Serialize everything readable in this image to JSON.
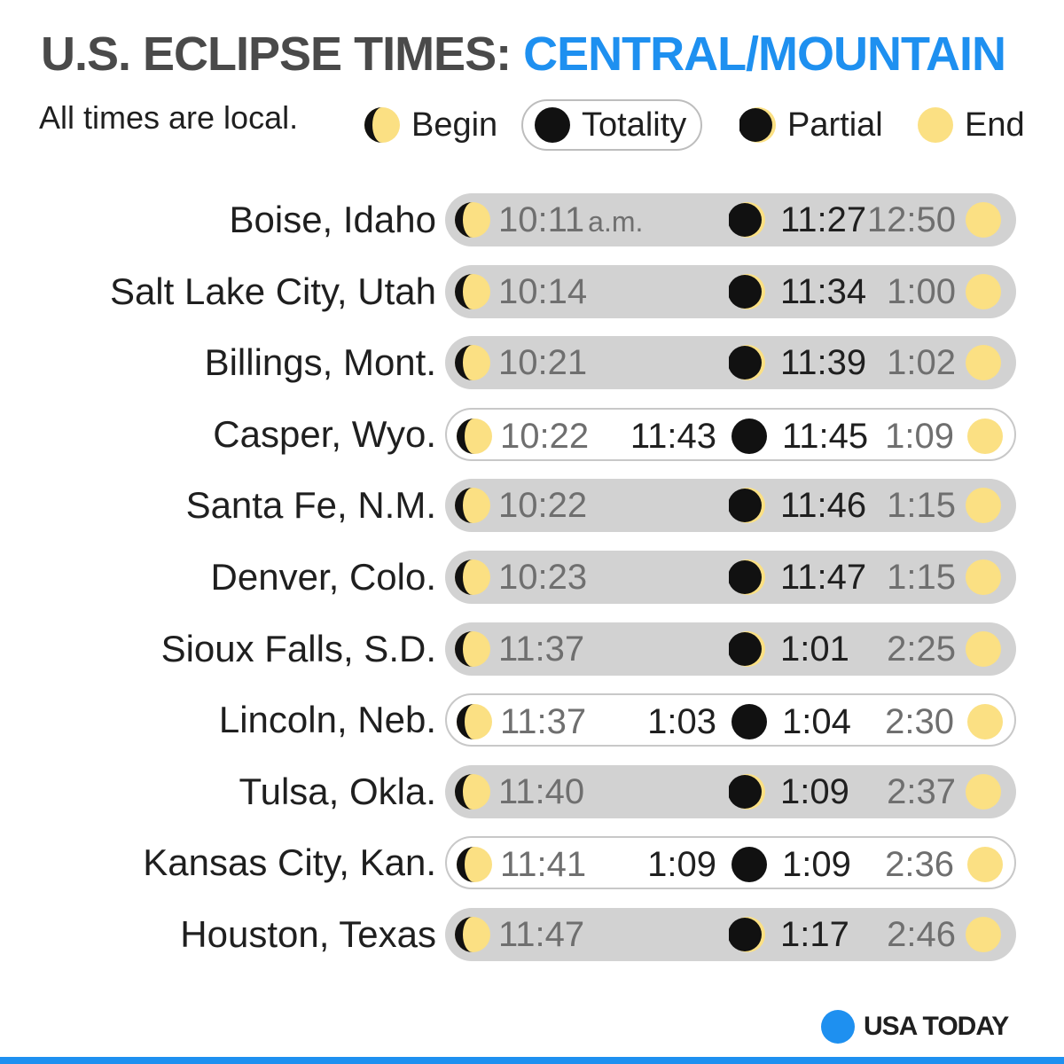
{
  "title": {
    "prefix": "U.S. ECLIPSE TIMES:",
    "highlight": "CENTRAL/MOUNTAIN"
  },
  "note": "All times are local.",
  "legend": [
    {
      "key": "begin",
      "label": "Begin",
      "icon": "eclipse-begin-icon"
    },
    {
      "key": "totality",
      "label": "Totality",
      "icon": "eclipse-totality-icon"
    },
    {
      "key": "partial",
      "label": "Partial",
      "icon": "eclipse-partial-icon"
    },
    {
      "key": "end",
      "label": "End",
      "icon": "sun-end-icon"
    }
  ],
  "colors": {
    "title_dark": "#4a4a4a",
    "title_blue": "#1e90f0",
    "sun": "#fbe083",
    "moon": "#111111",
    "bar_partial": "#d2d2d2"
  },
  "rows": [
    {
      "city": "Boise, Idaho",
      "type": "partial",
      "begin": "10:11",
      "begin_suffix": "a.m.",
      "totality_start": "",
      "max": "11:27",
      "end": "12:50"
    },
    {
      "city": "Salt Lake City, Utah",
      "type": "partial",
      "begin": "10:14",
      "begin_suffix": "",
      "totality_start": "",
      "max": "11:34",
      "end": "1:00"
    },
    {
      "city": "Billings, Mont.",
      "type": "partial",
      "begin": "10:21",
      "begin_suffix": "",
      "totality_start": "",
      "max": "11:39",
      "end": "1:02"
    },
    {
      "city": "Casper, Wyo.",
      "type": "totality",
      "begin": "10:22",
      "begin_suffix": "",
      "totality_start": "11:43",
      "max": "11:45",
      "end": "1:09"
    },
    {
      "city": "Santa Fe, N.M.",
      "type": "partial",
      "begin": "10:22",
      "begin_suffix": "",
      "totality_start": "",
      "max": "11:46",
      "end": "1:15"
    },
    {
      "city": "Denver, Colo.",
      "type": "partial",
      "begin": "10:23",
      "begin_suffix": "",
      "totality_start": "",
      "max": "11:47",
      "end": "1:15"
    },
    {
      "city": "Sioux Falls, S.D.",
      "type": "partial",
      "begin": "11:37",
      "begin_suffix": "",
      "totality_start": "",
      "max": "1:01",
      "end": "2:25"
    },
    {
      "city": "Lincoln, Neb.",
      "type": "totality",
      "begin": "11:37",
      "begin_suffix": "",
      "totality_start": "1:03",
      "max": "1:04",
      "end": "2:30"
    },
    {
      "city": "Tulsa, Okla.",
      "type": "partial",
      "begin": "11:40",
      "begin_suffix": "",
      "totality_start": "",
      "max": "1:09",
      "end": "2:37"
    },
    {
      "city": "Kansas City, Kan.",
      "type": "totality",
      "begin": "11:41",
      "begin_suffix": "",
      "totality_start": "1:09",
      "max": "1:09",
      "end": "2:36"
    },
    {
      "city": "Houston, Texas",
      "type": "partial",
      "begin": "11:47",
      "begin_suffix": "",
      "totality_start": "",
      "max": "1:17",
      "end": "2:46"
    }
  ],
  "logo": {
    "text": "USA TODAY"
  }
}
